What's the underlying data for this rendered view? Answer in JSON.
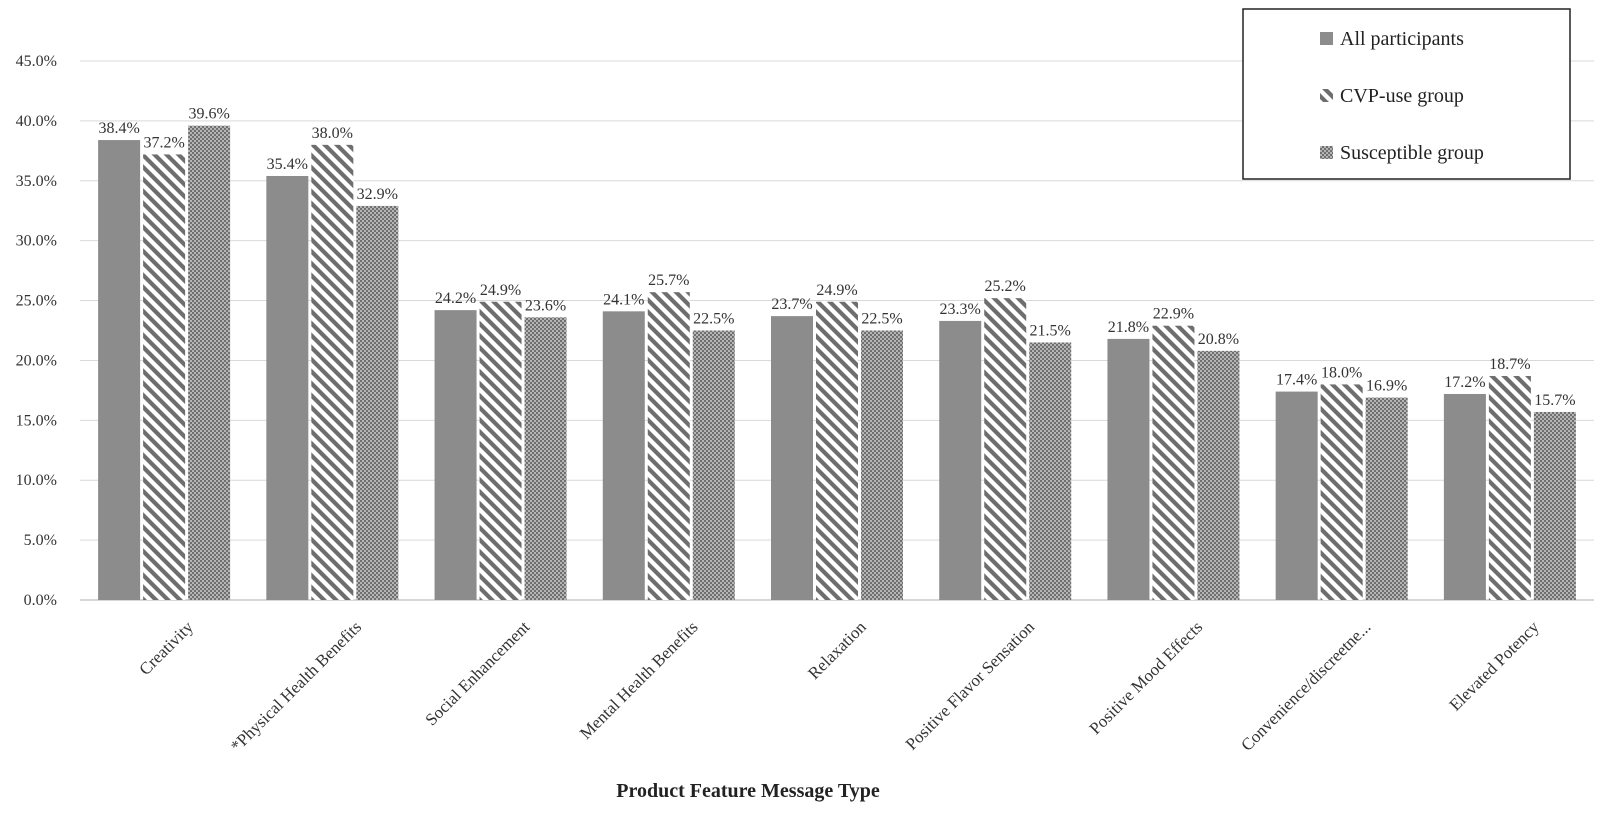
{
  "chart_data": {
    "type": "bar",
    "categories": [
      "Creativity",
      "*Physical Health Benefits",
      "Social Enhancement",
      "Mental Health Benefits",
      "Relaxation",
      "Positive Flavor Sensation",
      "Positive Mood Effects",
      "Convenience/discreetne...",
      "Elevated Potency"
    ],
    "series": [
      {
        "name": "All participants",
        "values": [
          38.4,
          35.4,
          24.2,
          24.1,
          23.7,
          23.3,
          21.8,
          17.4,
          17.2
        ],
        "labels": [
          "38.4%",
          "35.4%",
          "24.2%",
          "24.1%",
          "23.7%",
          "23.3%",
          "21.8%",
          "17.4%",
          "17.2%"
        ],
        "pattern": "solid",
        "color": "#8c8c8c"
      },
      {
        "name": "CVP-use group",
        "values": [
          37.2,
          38.0,
          24.9,
          25.7,
          24.9,
          25.2,
          22.9,
          18.0,
          18.7
        ],
        "labels": [
          "37.2%",
          "38.0%",
          "24.9%",
          "25.7%",
          "24.9%",
          "25.2%",
          "22.9%",
          "18.0%",
          "18.7%"
        ],
        "pattern": "diagonal",
        "color": "#7a7a7a"
      },
      {
        "name": "Susceptible group",
        "values": [
          39.6,
          32.9,
          23.6,
          22.5,
          22.5,
          21.5,
          20.8,
          16.9,
          15.7
        ],
        "labels": [
          "39.6%",
          "32.9%",
          "23.6%",
          "22.5%",
          "22.5%",
          "21.5%",
          "20.8%",
          "16.9%",
          "15.7%"
        ],
        "pattern": "checker",
        "color": "#8a8a8a"
      }
    ],
    "title": "",
    "xlabel": "Product Feature Message Type",
    "ylabel": "",
    "ylim": [
      0,
      45
    ],
    "yticks": [
      0,
      5,
      10,
      15,
      20,
      25,
      30,
      35,
      40,
      45
    ],
    "ytick_labels": [
      "0.0%",
      "5.0%",
      "10.0%",
      "15.0%",
      "20.0%",
      "25.0%",
      "30.0%",
      "35.0%",
      "40.0%",
      "45.0%"
    ],
    "grid": true,
    "legend_position": "top-right"
  }
}
